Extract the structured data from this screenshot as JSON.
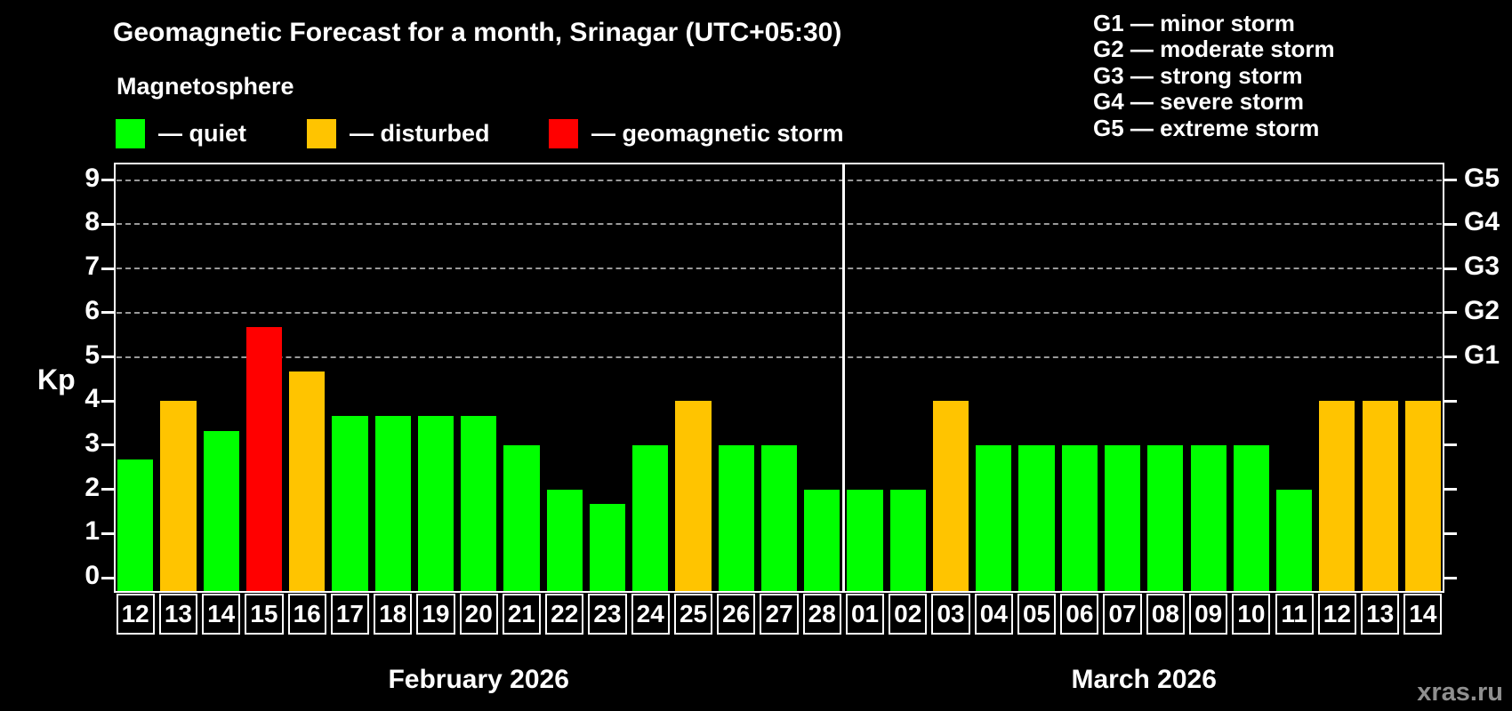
{
  "header": {
    "title": "Geomagnetic Forecast for a month, Srinagar (UTC+05:30)"
  },
  "legend": {
    "heading": "Magnetosphere",
    "items": [
      {
        "key": "quiet",
        "color": "#00ff00",
        "label": "— quiet"
      },
      {
        "key": "disturbed",
        "color": "#ffc400",
        "label": "— disturbed"
      },
      {
        "key": "storm",
        "color": "#ff0000",
        "label": "— geomagnetic storm"
      }
    ]
  },
  "g_legend": {
    "items": [
      {
        "text": "G1 — minor storm"
      },
      {
        "text": "G2 — moderate storm"
      },
      {
        "text": "G3 — strong storm"
      },
      {
        "text": "G4 — severe storm"
      },
      {
        "text": "G5 — extreme storm"
      }
    ]
  },
  "watermark": "xras.ru",
  "chart_data": {
    "type": "bar",
    "title": "Geomagnetic Forecast for a month, Srinagar (UTC+05:30)",
    "xlabel": "",
    "ylabel": "Kp",
    "ylim": [
      0,
      9.4
    ],
    "legend_position": "top-left",
    "grid": "dashed horizontal lines at Kp 5–9 (storm levels G1–G5)",
    "categories": [
      "12",
      "13",
      "14",
      "15",
      "16",
      "17",
      "18",
      "19",
      "20",
      "21",
      "22",
      "23",
      "24",
      "25",
      "26",
      "27",
      "28",
      "01",
      "02",
      "03",
      "04",
      "05",
      "06",
      "07",
      "08",
      "09",
      "10",
      "11",
      "12",
      "13",
      "14"
    ],
    "values": [
      2.67,
      4,
      3.33,
      5.67,
      4.67,
      3.67,
      3.67,
      3.67,
      3.67,
      3,
      2,
      1.67,
      3,
      4,
      3,
      3,
      2,
      2,
      2,
      4,
      3,
      3,
      3,
      3,
      3,
      3,
      3,
      2,
      4,
      4,
      4
    ],
    "status": [
      "quiet",
      "disturbed",
      "quiet",
      "storm",
      "disturbed",
      "quiet",
      "quiet",
      "quiet",
      "quiet",
      "quiet",
      "quiet",
      "quiet",
      "quiet",
      "disturbed",
      "quiet",
      "quiet",
      "quiet",
      "quiet",
      "quiet",
      "disturbed",
      "quiet",
      "quiet",
      "quiet",
      "quiet",
      "quiet",
      "quiet",
      "quiet",
      "quiet",
      "disturbed",
      "disturbed",
      "disturbed"
    ],
    "colors": {
      "quiet": "#00ff00",
      "disturbed": "#ffc400",
      "storm": "#ff0000"
    },
    "months": [
      {
        "label": "February 2026",
        "span": 17
      },
      {
        "label": "March 2026",
        "span": 14
      }
    ],
    "y_ticks": [
      "0",
      "1",
      "2",
      "3",
      "4",
      "5",
      "6",
      "7",
      "8",
      "9"
    ],
    "right_axis": [
      {
        "value": 5,
        "label": "G1"
      },
      {
        "value": 6,
        "label": "G2"
      },
      {
        "value": 7,
        "label": "G3"
      },
      {
        "value": 8,
        "label": "G4"
      },
      {
        "value": 9,
        "label": "G5"
      }
    ],
    "gridline_values": [
      5,
      6,
      7,
      8,
      9
    ]
  }
}
